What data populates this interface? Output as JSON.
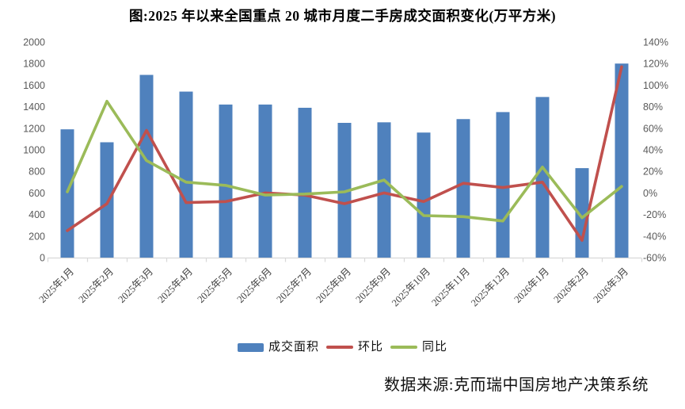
{
  "chart_data": {
    "type": "bar+line",
    "title": "图:2025 年以来全国重点 20 城市月度二手房成交面积变化(万平方米)",
    "categories": [
      "2025年1月",
      "2025年2月",
      "2025年3月",
      "2025年4月",
      "2025年5月",
      "2025年6月",
      "2025年7月",
      "2025年8月",
      "2025年9月",
      "2025年10月",
      "2025年11月",
      "2025年12月",
      "2026年1月",
      "2026年2月",
      "2026年3月"
    ],
    "series": [
      {
        "name": "成交面积",
        "type": "bar",
        "axis": "left",
        "unit": "万平方米",
        "color": "#4F81BD",
        "values": [
          1190,
          1070,
          1695,
          1540,
          1420,
          1420,
          1390,
          1250,
          1255,
          1160,
          1285,
          1350,
          1490,
          830,
          1800
        ]
      },
      {
        "name": "环比",
        "type": "line",
        "axis": "right",
        "unit": "%",
        "color": "#C0504D",
        "values": [
          -35,
          -10,
          58,
          -9,
          -8,
          0,
          -2,
          -10,
          0,
          -8,
          9,
          5,
          10,
          -44,
          117
        ]
      },
      {
        "name": "同比",
        "type": "line",
        "axis": "right",
        "unit": "%",
        "color": "#9BBB59",
        "values": [
          1,
          85,
          30,
          10,
          7,
          -2,
          -1,
          1,
          12,
          -21,
          -22,
          -26,
          24,
          -23,
          6
        ]
      }
    ],
    "left_axis": {
      "min": 0,
      "max": 2000,
      "step": 200,
      "tick_labels": [
        "0",
        "200",
        "400",
        "600",
        "800",
        "1000",
        "1200",
        "1400",
        "1600",
        "1800",
        "2000"
      ]
    },
    "right_axis": {
      "min": -60,
      "max": 140,
      "step": 20,
      "tick_labels": [
        "-60%",
        "-40%",
        "-20%",
        "0%",
        "20%",
        "40%",
        "60%",
        "80%",
        "100%",
        "120%",
        "140%"
      ]
    },
    "grid": false,
    "legend_position": "bottom"
  },
  "source_note": "数据来源:克而瑞中国房地产决策系统",
  "colors": {
    "bar": "#4F81BD",
    "mom_line": "#C0504D",
    "yoy_line": "#9BBB59",
    "axis_line": "#D9D9D9",
    "axis_tick_label": "#595959",
    "x_label": "#404040",
    "background": "#FFFFFF"
  }
}
